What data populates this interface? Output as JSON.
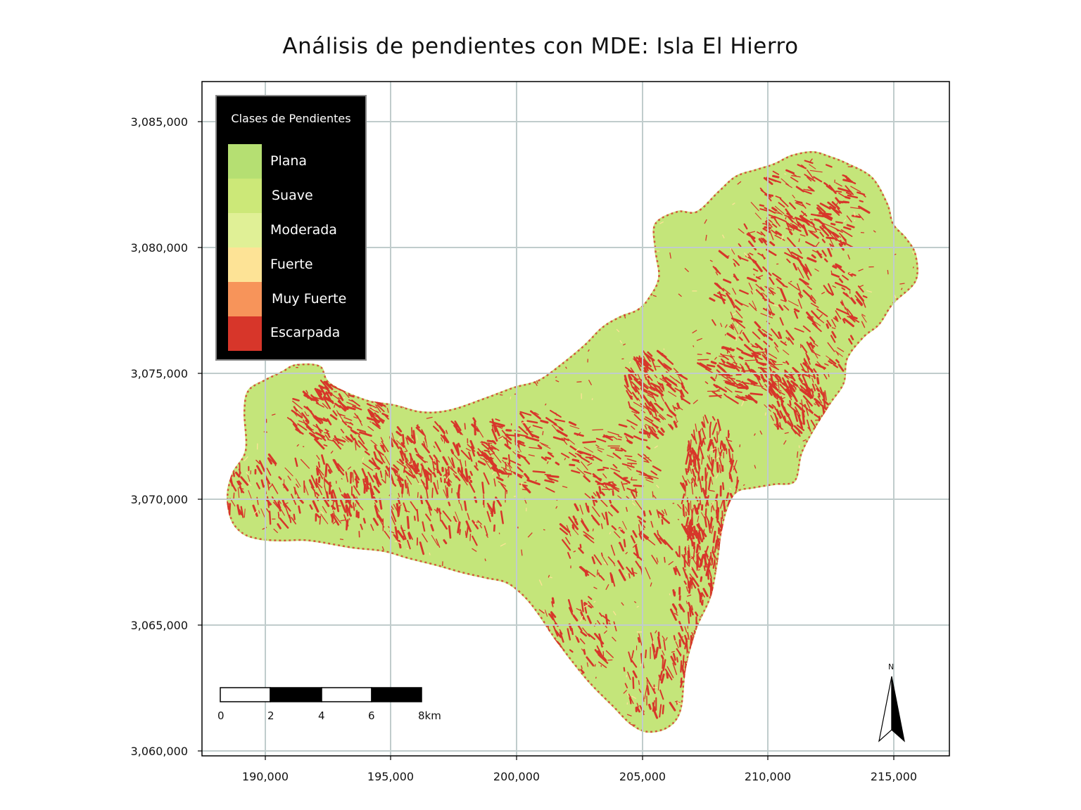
{
  "title": "Análisis de pendientes con MDE: Isla El Hierro",
  "axes": {
    "x_ticks": [
      "190,000",
      "195,000",
      "200,000",
      "205,000",
      "210,000",
      "215,000"
    ],
    "y_ticks": [
      "3,085,000",
      "3,080,000",
      "3,075,000",
      "3,070,000",
      "3,065,000",
      "3,060,000"
    ],
    "grid": true,
    "grid_color": "#c0cccc"
  },
  "legend": {
    "title": "Clases de Pendientes",
    "placement": "top-left",
    "items": [
      {
        "label": "Plana",
        "color": "#b5df72"
      },
      {
        "label": "Suave",
        "color": "#cce878"
      },
      {
        "label": "Moderada",
        "color": "#e0f096"
      },
      {
        "label": "Fuerte",
        "color": "#fde396"
      },
      {
        "label": "Muy Fuerte",
        "color": "#f7945a"
      },
      {
        "label": "Escarpada",
        "color": "#d7362a"
      }
    ]
  },
  "scale_bar": {
    "labels": [
      "0",
      "2",
      "4",
      "6",
      "8km"
    ]
  },
  "north_arrow": {
    "label": "N",
    "icon": "north-arrow-icon"
  },
  "island": {
    "base_color": "#c4e57a",
    "steep_color": "#d7362a"
  }
}
